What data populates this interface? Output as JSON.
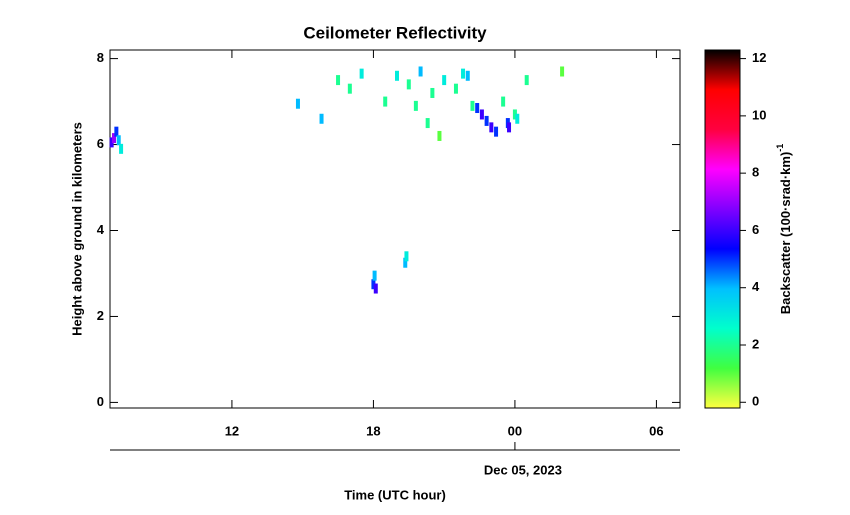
{
  "chart_data": {
    "type": "heatmap",
    "title": "Ceilometer Reflectivity",
    "xlabel": "Time (UTC hour)",
    "ylabel": "Height above ground in kilometers",
    "date_label": "Dec 05, 2023",
    "colorbar_label": "Backscatter (100·srad·km)",
    "colorbar_label_exponent": "-1",
    "xlim": [
      6.83,
      31.0
    ],
    "xticks": [
      12,
      18,
      {
        "value": 24,
        "label": "00"
      },
      {
        "value": 30,
        "label": "06"
      }
    ],
    "ylim": [
      -0.13,
      8.2
    ],
    "yticks": [
      0,
      2,
      4,
      6,
      8
    ],
    "clim": [
      -0.2,
      12.3
    ],
    "cticks": [
      0,
      2,
      4,
      6,
      8,
      10,
      12
    ],
    "colormap": [
      "#ffff40",
      "#40ff40",
      "#00ffcc",
      "#00c0ff",
      "#0000ff",
      "#8000ff",
      "#ff00ff",
      "#ff0040",
      "#ff0000",
      "#000000"
    ],
    "x": [
      6.9,
      7.0,
      7.1,
      7.2,
      7.3,
      18.0,
      18.05,
      18.1,
      19.35,
      19.4,
      22.4,
      22.6,
      22.8,
      23.0,
      23.2,
      23.7,
      23.75,
      24.0,
      24.1,
      14.8,
      15.8,
      19.0,
      19.5,
      20.0,
      20.5,
      21.0,
      21.5,
      19.8,
      20.3,
      18.5,
      17.5,
      22.0,
      23.5,
      17.0,
      16.5,
      20.8,
      21.8,
      22.2,
      24.5,
      26.0
    ],
    "y": [
      6.05,
      6.15,
      6.3,
      6.1,
      5.9,
      2.75,
      2.95,
      2.65,
      3.25,
      3.4,
      6.85,
      6.7,
      6.55,
      6.4,
      6.3,
      6.5,
      6.4,
      6.7,
      6.6,
      6.95,
      6.6,
      7.6,
      7.4,
      7.7,
      7.2,
      7.5,
      7.3,
      6.9,
      6.5,
      7.0,
      7.65,
      7.6,
      7.0,
      7.3,
      7.5,
      6.2,
      7.65,
      6.9,
      7.5,
      7.7
    ],
    "values": [
      6,
      7,
      5,
      4,
      3,
      5,
      4,
      6,
      4,
      3,
      5,
      6,
      5,
      6,
      5,
      5,
      6,
      2,
      3,
      4,
      4,
      3,
      2,
      4,
      2,
      3,
      2,
      2,
      2,
      2,
      3,
      4,
      2,
      2,
      2,
      1,
      3,
      2,
      2,
      1
    ]
  }
}
